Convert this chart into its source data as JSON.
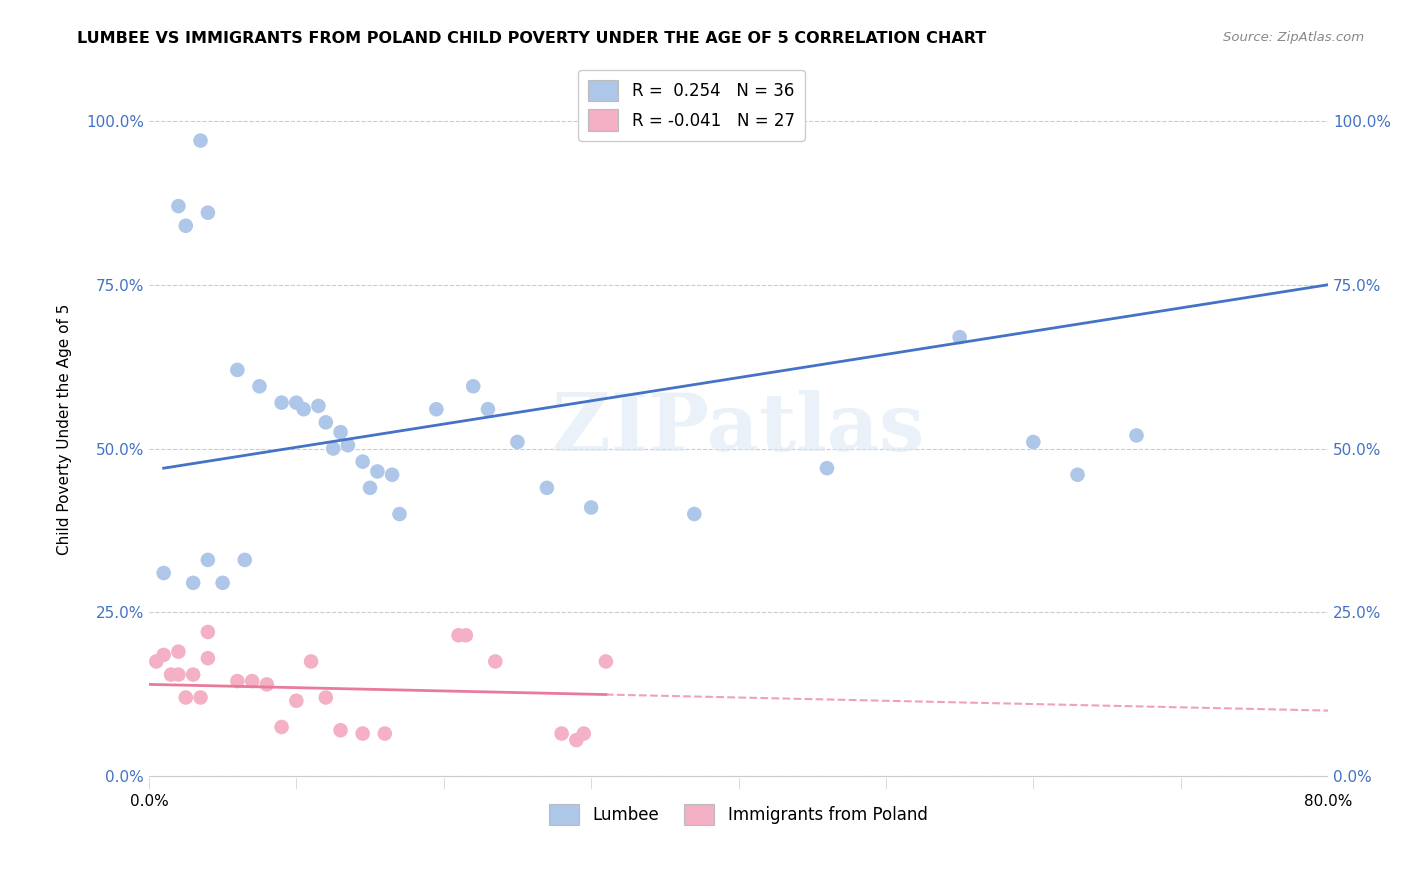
{
  "title": "LUMBEE VS IMMIGRANTS FROM POLAND CHILD POVERTY UNDER THE AGE OF 5 CORRELATION CHART",
  "source": "Source: ZipAtlas.com",
  "ylabel": "Child Poverty Under the Age of 5",
  "xlabel": "",
  "xlim": [
    0.0,
    0.8
  ],
  "ylim": [
    -0.02,
    1.08
  ],
  "yticks": [
    0.0,
    0.25,
    0.5,
    0.75,
    1.0
  ],
  "ytick_labels": [
    "0.0%",
    "25.0%",
    "50.0%",
    "75.0%",
    "100.0%"
  ],
  "xticks": [
    0.0,
    0.1,
    0.2,
    0.3,
    0.4,
    0.5,
    0.6,
    0.7,
    0.8
  ],
  "xtick_labels": [
    "0.0%",
    "",
    "",
    "",
    "",
    "",
    "",
    "",
    "80.0%"
  ],
  "lumbee_R": 0.254,
  "lumbee_N": 36,
  "poland_R": -0.041,
  "poland_N": 27,
  "lumbee_color": "#aec6e8",
  "poland_color": "#f4b0c4",
  "lumbee_line_color": "#4472c4",
  "poland_line_color": "#e87a9a",
  "watermark": "ZIPatlas",
  "lumbee_x": [
    0.01,
    0.03,
    0.05,
    0.035,
    0.06,
    0.075,
    0.09,
    0.1,
    0.105,
    0.115,
    0.12,
    0.13,
    0.125,
    0.135,
    0.145,
    0.155,
    0.15,
    0.165,
    0.17,
    0.195,
    0.22,
    0.23,
    0.25,
    0.27,
    0.3,
    0.37,
    0.46,
    0.55,
    0.6,
    0.63,
    0.67,
    0.02,
    0.025,
    0.04,
    0.04,
    0.065
  ],
  "lumbee_y": [
    0.31,
    0.295,
    0.295,
    0.97,
    0.62,
    0.595,
    0.57,
    0.57,
    0.56,
    0.565,
    0.54,
    0.525,
    0.5,
    0.505,
    0.48,
    0.465,
    0.44,
    0.46,
    0.4,
    0.56,
    0.595,
    0.56,
    0.51,
    0.44,
    0.41,
    0.4,
    0.47,
    0.67,
    0.51,
    0.46,
    0.52,
    0.87,
    0.84,
    0.86,
    0.33,
    0.33
  ],
  "poland_x": [
    0.005,
    0.01,
    0.015,
    0.02,
    0.02,
    0.025,
    0.03,
    0.035,
    0.04,
    0.04,
    0.06,
    0.07,
    0.08,
    0.09,
    0.1,
    0.11,
    0.12,
    0.13,
    0.145,
    0.16,
    0.21,
    0.215,
    0.235,
    0.28,
    0.29,
    0.295,
    0.31
  ],
  "poland_y": [
    0.175,
    0.185,
    0.155,
    0.155,
    0.19,
    0.12,
    0.155,
    0.12,
    0.18,
    0.22,
    0.145,
    0.145,
    0.14,
    0.075,
    0.115,
    0.175,
    0.12,
    0.07,
    0.065,
    0.065,
    0.215,
    0.215,
    0.175,
    0.065,
    0.055,
    0.065,
    0.175
  ]
}
